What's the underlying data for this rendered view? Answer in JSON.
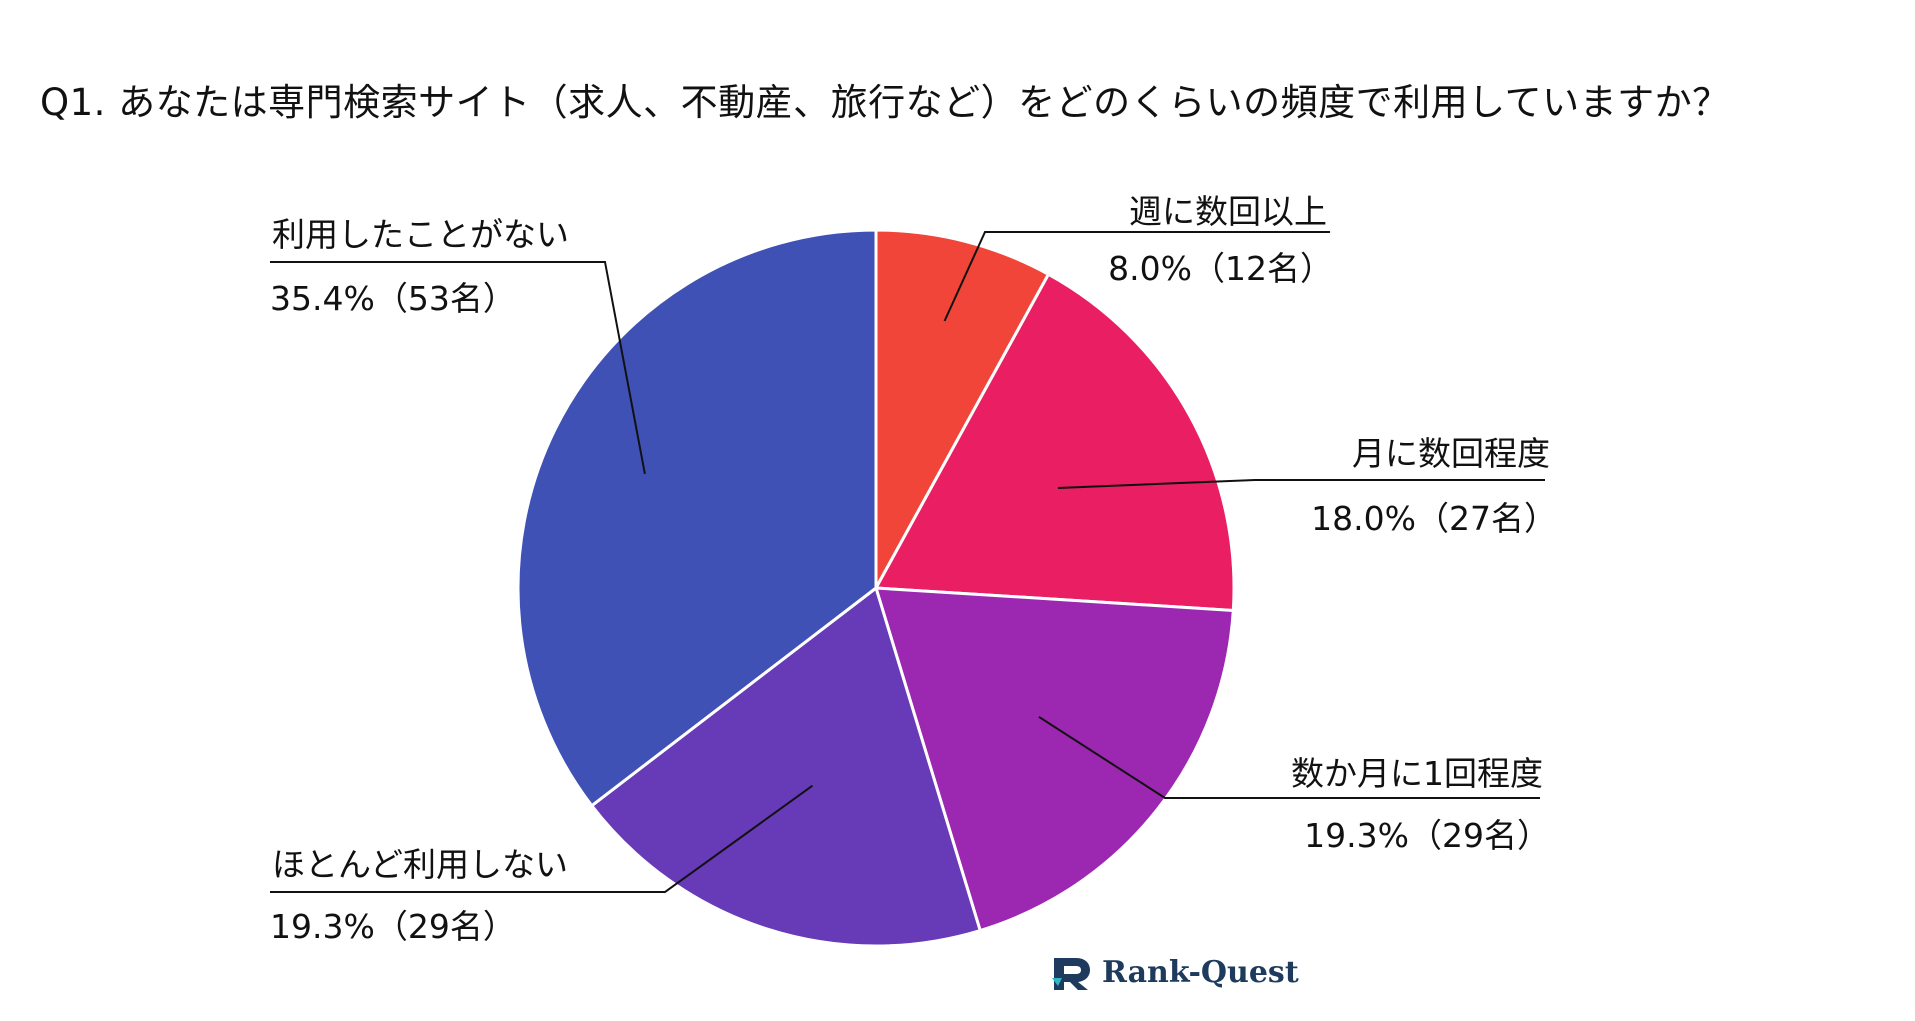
{
  "title": "Q1. あなたは専門検索サイト（求人、不動産、旅行など）をどのくらいの頻度で利用していますか？",
  "brand": {
    "name": "Rank-Quest",
    "icon": "rank-quest-logo-icon"
  },
  "chart_data": {
    "type": "pie",
    "title": "Q1. あなたは専門検索サイト（求人、不動産、旅行など）をどのくらいの頻度で利用していますか？",
    "start_angle_deg": 0,
    "direction": "clockwise",
    "slices": [
      {
        "label": "週に数回以上",
        "percent": 8.0,
        "count": 12,
        "value_text": "8.0%（12名）",
        "color": "#f04538"
      },
      {
        "label": "月に数回程度",
        "percent": 18.0,
        "count": 27,
        "value_text": "18.0%（27名）",
        "color": "#e91e63"
      },
      {
        "label": "数か月に1回程度",
        "percent": 19.3,
        "count": 29,
        "value_text": "19.3%（29名）",
        "color": "#9c27b0"
      },
      {
        "label": "ほとんど利用しない",
        "percent": 19.3,
        "count": 29,
        "value_text": "19.3%（29名）",
        "color": "#673ab7"
      },
      {
        "label": "利用したことがない",
        "percent": 35.4,
        "count": 53,
        "value_text": "35.4%（53名）",
        "color": "#3f51b5"
      }
    ]
  }
}
